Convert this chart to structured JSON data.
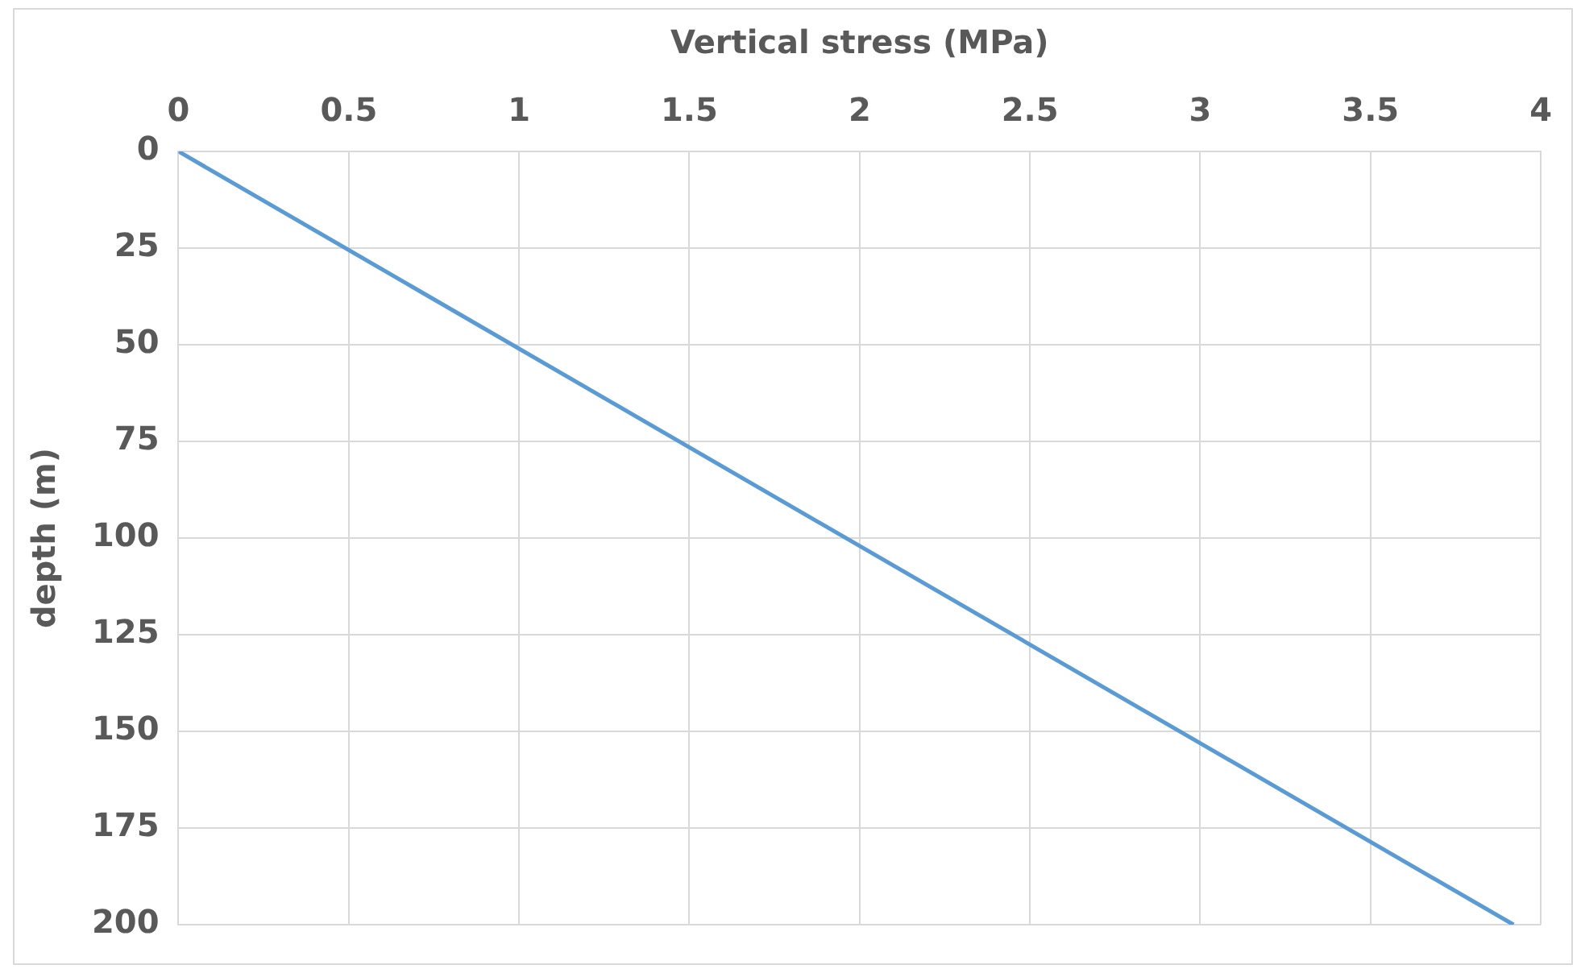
{
  "chart_data": {
    "type": "line",
    "xlabel": "Vertical stress (MPa)",
    "ylabel": "depth (m)",
    "series": [
      {
        "color": "#5b9bd5",
        "x": [
          0,
          3.92
        ],
        "values": [
          0,
          200
        ]
      }
    ],
    "xlim": [
      0,
      4
    ],
    "xticks": [
      0,
      0.5,
      1,
      1.5,
      2,
      2.5,
      3,
      3.5,
      4
    ],
    "ylim": [
      200,
      0
    ],
    "yticks": [
      0,
      25,
      50,
      75,
      100,
      125,
      150,
      175,
      200
    ],
    "grid": true,
    "legend": false,
    "marker": "none",
    "line_style": "solid"
  }
}
